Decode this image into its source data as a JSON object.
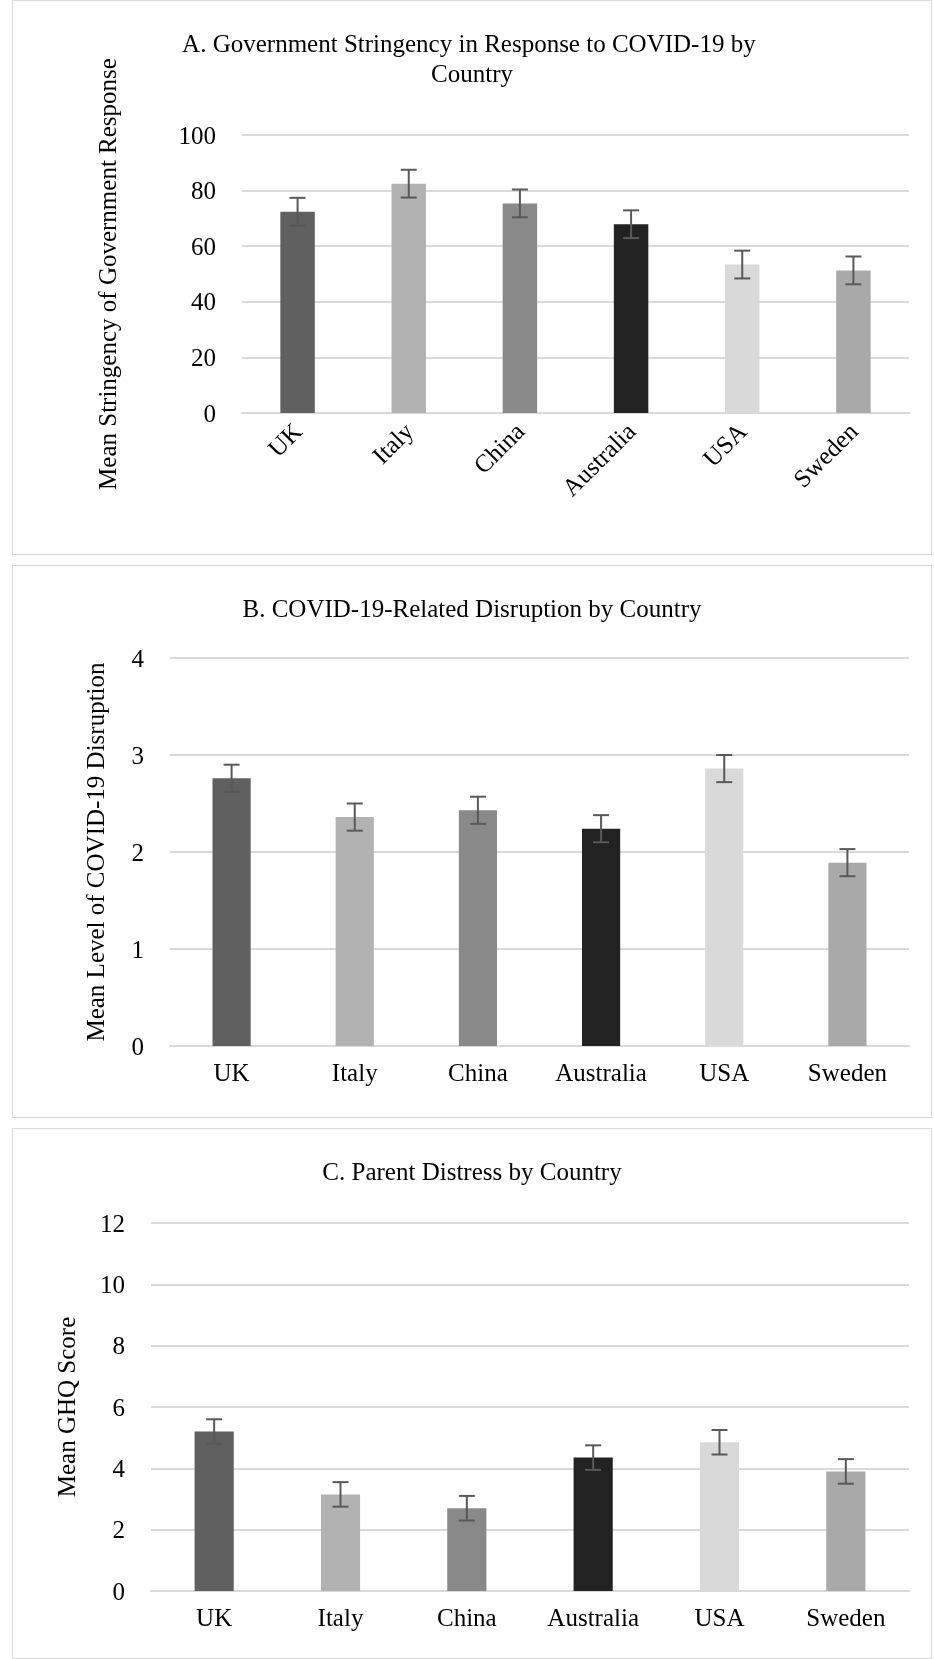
{
  "chart_data": [
    {
      "type": "bar",
      "title": "A. Government Stringency in Response to COVID-19 by Country",
      "ylabel": "Mean Stringency of Government Response",
      "categories": [
        "UK",
        "Italy",
        "China",
        "Australia",
        "USA",
        "Sweden"
      ],
      "values": [
        72.4,
        82.5,
        75.4,
        67.9,
        53.4,
        51.3
      ],
      "errors": [
        5,
        5,
        5,
        5,
        5,
        5
      ],
      "colors": [
        "#606060",
        "#b2b2b2",
        "#898989",
        "#222222",
        "#d9d9d9",
        "#a9a9a9"
      ],
      "ylim": [
        0,
        100
      ],
      "yticks": [
        0,
        20,
        40,
        60,
        80,
        100
      ],
      "grid": "y"
    },
    {
      "type": "bar",
      "title": "B. COVID-19-Related Disruption by Country",
      "ylabel": "Mean Level of COVID-19 Disruption",
      "categories": [
        "UK",
        "Italy",
        "China",
        "Australia",
        "USA",
        "Sweden"
      ],
      "values": [
        2.76,
        2.36,
        2.43,
        2.24,
        2.86,
        1.89
      ],
      "errors": [
        0.14,
        0.14,
        0.14,
        0.14,
        0.14,
        0.14
      ],
      "colors": [
        "#606060",
        "#b2b2b2",
        "#898989",
        "#222222",
        "#d9d9d9",
        "#a9a9a9"
      ],
      "ylim": [
        0,
        4
      ],
      "yticks": [
        0,
        1,
        2,
        3,
        4
      ],
      "grid": "y"
    },
    {
      "type": "bar",
      "title": "C. Parent Distress by Country",
      "ylabel": "Mean GHQ Score",
      "categories": [
        "UK",
        "Italy",
        "China",
        "Australia",
        "USA",
        "Sweden"
      ],
      "values": [
        5.2,
        3.15,
        2.7,
        4.35,
        4.85,
        3.9
      ],
      "errors": [
        0.4,
        0.4,
        0.4,
        0.4,
        0.4,
        0.4
      ],
      "colors": [
        "#606060",
        "#b2b2b2",
        "#898989",
        "#222222",
        "#d9d9d9",
        "#a9a9a9"
      ],
      "ylim": [
        0,
        12
      ],
      "yticks": [
        0,
        2,
        4,
        6,
        8,
        10,
        12
      ],
      "grid": "y"
    }
  ]
}
